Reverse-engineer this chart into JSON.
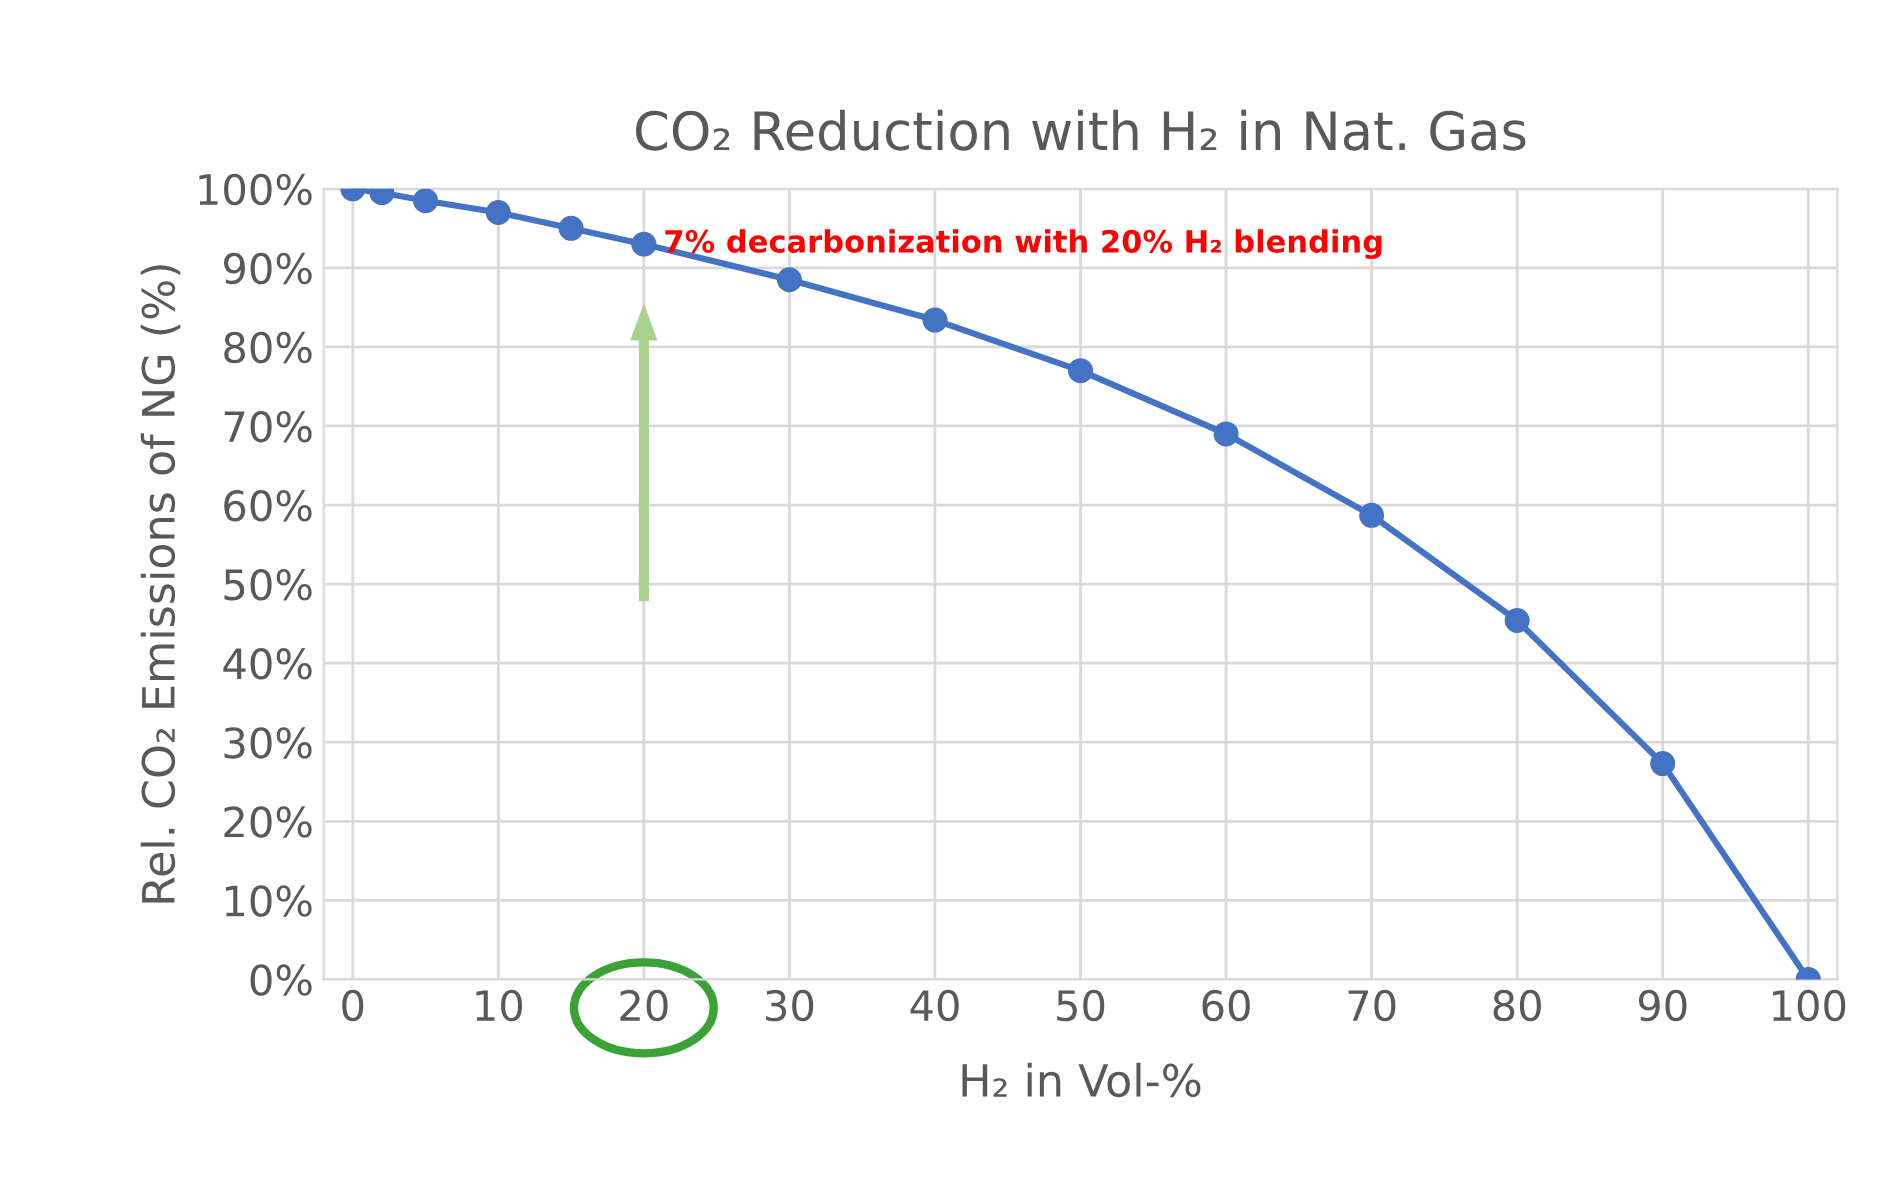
{
  "chart_data": {
    "type": "line",
    "title": "CO₂ Reduction with H₂ in Nat. Gas",
    "xlabel": "H₂ in Vol-%",
    "ylabel": "Rel. CO₂ Emissions of NG (%)",
    "x": [
      0,
      2,
      5,
      10,
      15,
      20,
      30,
      40,
      50,
      60,
      70,
      80,
      90,
      100
    ],
    "series": [
      {
        "color": "#4472c4",
        "values": [
          100,
          99.5,
          98.5,
          97,
          95,
          93,
          88.5,
          83.4,
          77,
          69,
          58.7,
          45.4,
          27.3,
          0
        ]
      }
    ],
    "xlim": [
      -2,
      102
    ],
    "xticks": [
      0,
      10,
      20,
      30,
      40,
      50,
      60,
      70,
      80,
      90,
      100
    ],
    "ylim": [
      0,
      100
    ],
    "yticks": [
      {
        "value": 0,
        "label": "0%"
      },
      {
        "value": 10,
        "label": "10%"
      },
      {
        "value": 20,
        "label": "20%"
      },
      {
        "value": 30,
        "label": "30%"
      },
      {
        "value": 40,
        "label": "40%"
      },
      {
        "value": 50,
        "label": "50%"
      },
      {
        "value": 60,
        "label": "60%"
      },
      {
        "value": 70,
        "label": "70%"
      },
      {
        "value": 80,
        "label": "80%"
      },
      {
        "value": 90,
        "label": "90%"
      },
      {
        "value": 100,
        "label": "100%"
      }
    ],
    "grid": true,
    "marker": "circle",
    "line_style": "solid",
    "annotations": [
      {
        "text": "7% decarbonization with 20% H₂ blending",
        "x": 20,
        "y": 93
      }
    ]
  }
}
